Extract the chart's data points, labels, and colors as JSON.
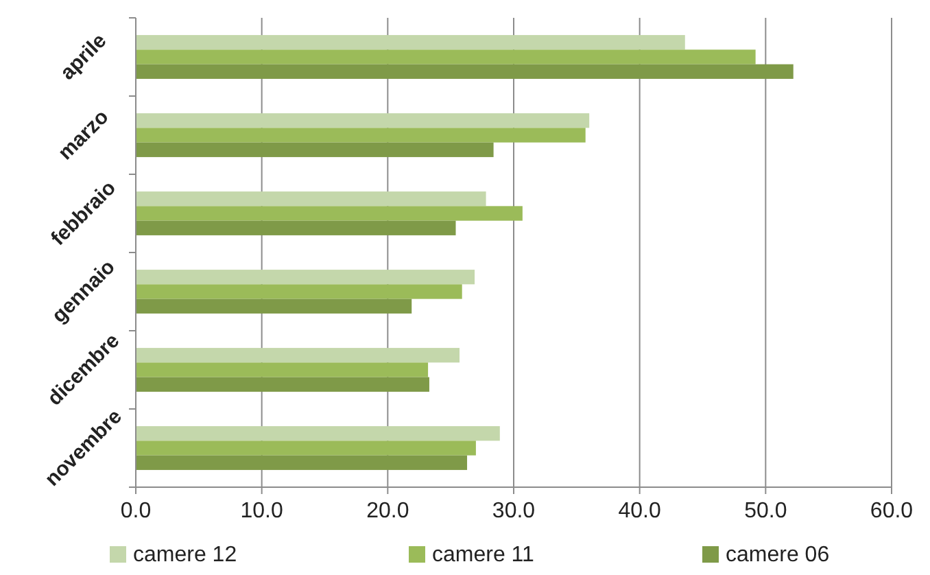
{
  "chart_data": {
    "type": "bar",
    "orientation": "horizontal",
    "categories": [
      "aprile",
      "marzo",
      "febbraio",
      "gennaio",
      "dicembre",
      "novembre"
    ],
    "series": [
      {
        "name": "camere 12",
        "color": "#c4d7ab",
        "values": [
          43.6,
          36.0,
          27.8,
          26.9,
          25.7,
          28.9
        ]
      },
      {
        "name": "camere 11",
        "color": "#9bbb59",
        "values": [
          49.2,
          35.7,
          30.7,
          25.9,
          23.2,
          27.0
        ]
      },
      {
        "name": "camere 06",
        "color": "#7f9a48",
        "values": [
          52.2,
          28.4,
          25.4,
          21.9,
          23.3,
          26.3
        ]
      }
    ],
    "xlim": [
      0,
      60
    ],
    "xticks": [
      {
        "value": 0,
        "label": "0.0"
      },
      {
        "value": 10,
        "label": "10.0"
      },
      {
        "value": 20,
        "label": "20.0"
      },
      {
        "value": 30,
        "label": "30.0"
      },
      {
        "value": 40,
        "label": "40.0"
      },
      {
        "value": 50,
        "label": "50.0"
      },
      {
        "value": 60,
        "label": "60.0"
      }
    ],
    "grid": "x",
    "legend": "bottom"
  }
}
